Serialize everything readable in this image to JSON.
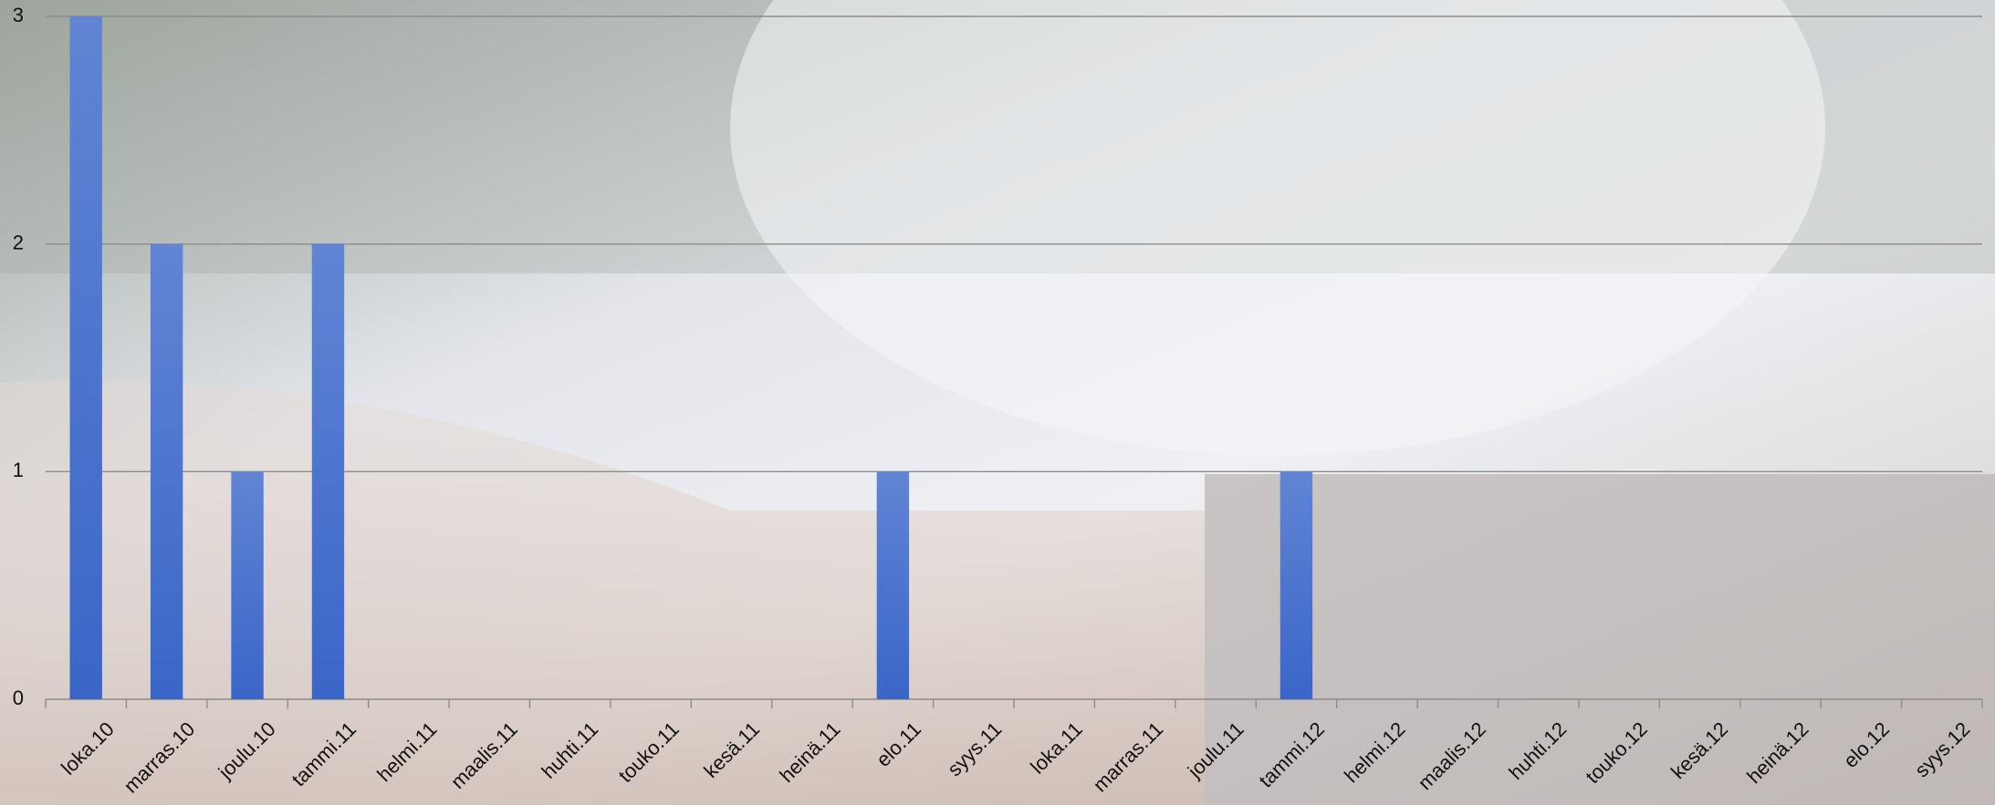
{
  "chart_data": {
    "type": "bar",
    "categories": [
      "loka.10",
      "marras.10",
      "joulu.10",
      "tammi.11",
      "helmi.11",
      "maalis.11",
      "huhti.11",
      "touko.11",
      "kesä.11",
      "heinä.11",
      "elo.11",
      "syys.11",
      "loka.11",
      "marras.11",
      "joulu.11",
      "tammi.12",
      "helmi.12",
      "maalis.12",
      "huhti.12",
      "touko.12",
      "kesä.12",
      "heinä.12",
      "elo.12",
      "syys.12"
    ],
    "values": [
      3,
      2,
      1,
      2,
      0,
      0,
      0,
      0,
      0,
      0,
      1,
      0,
      0,
      0,
      0,
      1,
      0,
      0,
      0,
      0,
      0,
      0,
      0,
      0
    ],
    "color": "#3a66c9",
    "ylim": [
      0,
      3
    ],
    "yticks": [
      0,
      1,
      2,
      3
    ],
    "grid": true
  }
}
